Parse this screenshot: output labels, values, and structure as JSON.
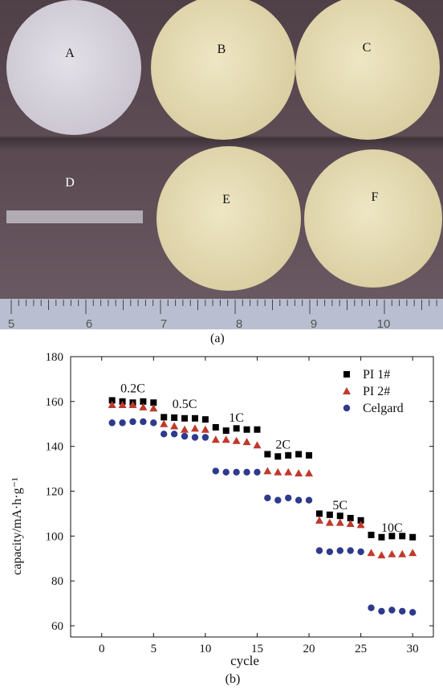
{
  "photo": {
    "sample_labels": [
      "A",
      "B",
      "C",
      "D",
      "E",
      "F"
    ],
    "ruler_numbers": [
      "5",
      "6",
      "7",
      "8",
      "9",
      "10"
    ],
    "caption": "(a)"
  },
  "colors": {
    "background_photo": "#5a4a52",
    "disc_white": "#d8d4dc",
    "disc_cream": "#e6dcb2",
    "ruler": "#b9bfd0",
    "pi1": "#000000",
    "pi2": "#c0392b",
    "celgard": "#2e3a8c"
  },
  "chart_data": {
    "type": "scatter",
    "caption": "(b)",
    "xlabel": "cycle",
    "ylabel": "capacity/mA·h·g⁻¹",
    "xlim": [
      -3,
      32
    ],
    "ylim": [
      55,
      180
    ],
    "xticks": [
      0,
      5,
      10,
      15,
      20,
      25,
      30
    ],
    "yticks": [
      60,
      80,
      100,
      120,
      140,
      160,
      180
    ],
    "grid": false,
    "legend_position": "top-right",
    "rate_labels": [
      {
        "text": "0.2C",
        "x": 3,
        "y": 164
      },
      {
        "text": "0.5C",
        "x": 8,
        "y": 157
      },
      {
        "text": "1C",
        "x": 13,
        "y": 151
      },
      {
        "text": "2C",
        "x": 17.5,
        "y": 139
      },
      {
        "text": "5C",
        "x": 23,
        "y": 112
      },
      {
        "text": "10C",
        "x": 28,
        "y": 102
      }
    ],
    "series": [
      {
        "name": "PI 1#",
        "marker": "square",
        "x": [
          1,
          2,
          3,
          4,
          5,
          6,
          7,
          8,
          9,
          10,
          11,
          12,
          13,
          14,
          15,
          16,
          17,
          18,
          19,
          20,
          21,
          22,
          23,
          24,
          25,
          26,
          27,
          28,
          29,
          30
        ],
        "y": [
          160.5,
          160,
          159.5,
          160,
          159.5,
          153,
          152.8,
          152.5,
          152.5,
          152,
          148.5,
          147,
          148,
          147.5,
          147.5,
          136.5,
          135.5,
          136,
          136.5,
          136,
          110,
          109.5,
          109,
          108,
          107,
          100.5,
          99.5,
          100,
          100,
          99.5
        ]
      },
      {
        "name": "PI 2#",
        "marker": "triangle",
        "x": [
          1,
          2,
          3,
          4,
          5,
          6,
          7,
          8,
          9,
          10,
          11,
          12,
          13,
          14,
          15,
          16,
          17,
          18,
          19,
          20,
          21,
          22,
          23,
          24,
          25,
          26,
          27,
          28,
          29,
          30
        ],
        "y": [
          158.5,
          158.5,
          158.5,
          157.5,
          157,
          150,
          149,
          147.5,
          148,
          147.5,
          143,
          143,
          142.5,
          142,
          140.5,
          129,
          128.5,
          128.5,
          128,
          128,
          107,
          106,
          106,
          105.5,
          105,
          92.5,
          91.5,
          92,
          92,
          92.5
        ]
      },
      {
        "name": "Celgard",
        "marker": "circle",
        "x": [
          1,
          2,
          3,
          4,
          5,
          6,
          7,
          8,
          9,
          10,
          11,
          12,
          13,
          14,
          15,
          16,
          17,
          18,
          19,
          20,
          21,
          22,
          23,
          24,
          25,
          26,
          27,
          28,
          29,
          30
        ],
        "y": [
          150.5,
          150.5,
          151,
          151,
          150.5,
          145.5,
          145.5,
          144.5,
          144,
          144,
          129,
          128.5,
          128.5,
          128.5,
          128.5,
          117,
          116,
          117,
          116,
          116,
          93.5,
          93,
          93.5,
          93.5,
          93,
          68,
          66.5,
          67,
          66.5,
          66
        ]
      }
    ]
  }
}
